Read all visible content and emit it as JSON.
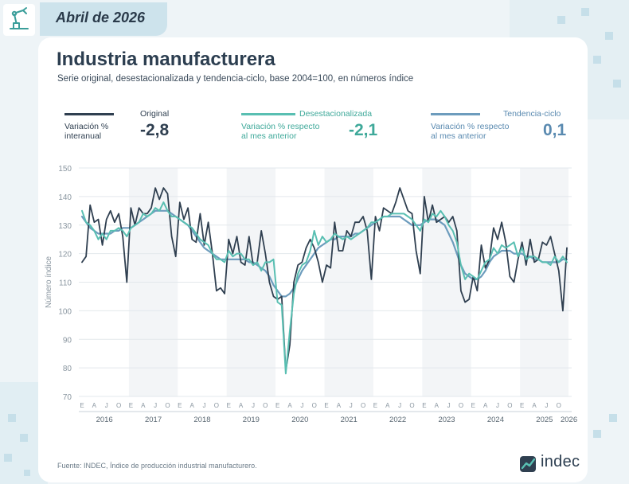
{
  "header": {
    "date_label": "Abril de 2026"
  },
  "page": {
    "title": "Industria manufacturera",
    "subtitle": "Serie original, desestacionalizada y tendencia-ciclo, base 2004=100, en números índice"
  },
  "colors": {
    "original": "#2f3f50",
    "desestacionalizada": "#59bfb2",
    "tendencia": "#6d9cbd",
    "grid": "#e3e8ec",
    "band": "#f3f5f7"
  },
  "legend": {
    "original": {
      "name": "Original",
      "desc": "Variación %\ninteranual",
      "value": "-2,8"
    },
    "desestacionalizada": {
      "name": "Desestacionalizada",
      "desc": "Variación % respecto\nal mes anterior",
      "value": "-2,1"
    },
    "tendencia": {
      "name": "Tendencia-ciclo",
      "desc": "Variación % respecto\nal mes anterior",
      "value": "0,1"
    }
  },
  "footer": {
    "source": "Fuente: INDEC, Índice de producción industrial manufacturero."
  },
  "brand": {
    "name": "indec"
  },
  "chart_data": {
    "type": "line",
    "ylabel": "Número índice",
    "ylim": [
      70,
      150
    ],
    "yticks": [
      70,
      80,
      90,
      100,
      110,
      120,
      130,
      140,
      150
    ],
    "grid": true,
    "start": "2016-01",
    "month_tick_labels": [
      "E",
      "A",
      "J",
      "O"
    ],
    "years": [
      "2016",
      "2017",
      "2018",
      "2019",
      "2020",
      "2021",
      "2022",
      "2023",
      "2024",
      "2025",
      "2026"
    ],
    "series": [
      {
        "name": "Original",
        "values": [
          117,
          119,
          137,
          131,
          132,
          123,
          132,
          135,
          131,
          134,
          126,
          110,
          136,
          130,
          136,
          134,
          134,
          136,
          143,
          139,
          143,
          141,
          126,
          119,
          138,
          132,
          136,
          125,
          124,
          134,
          123,
          131,
          120,
          107,
          108,
          106,
          125,
          120,
          126,
          117,
          116,
          126,
          116,
          117,
          128,
          120,
          110,
          105,
          104,
          105,
          79,
          88,
          110,
          116,
          117,
          122,
          125,
          122,
          117,
          110,
          116,
          115,
          131,
          121,
          121,
          128,
          126,
          131,
          131,
          133,
          128,
          111,
          133,
          128,
          136,
          135,
          134,
          138,
          143,
          139,
          135,
          134,
          121,
          113,
          140,
          131,
          137,
          131,
          132,
          133,
          131,
          133,
          128,
          107,
          103,
          104,
          112,
          107,
          123,
          115,
          118,
          129,
          125,
          131,
          124,
          112,
          110,
          118,
          124,
          116,
          125,
          117,
          118,
          124,
          123,
          126,
          120,
          114,
          100,
          122
        ],
        "unit": "índice"
      },
      {
        "name": "Desestacionalizada",
        "values": [
          135,
          131,
          130,
          128,
          125,
          127,
          125,
          128,
          128,
          129,
          128,
          126,
          129,
          130,
          131,
          134,
          133,
          134,
          136,
          135,
          138,
          135,
          133,
          133,
          132,
          131,
          130,
          129,
          127,
          125,
          124,
          123,
          120,
          118,
          118,
          117,
          121,
          119,
          120,
          120,
          118,
          118,
          116,
          117,
          114,
          117,
          117,
          118,
          103,
          102,
          78,
          93,
          106,
          113,
          116,
          117,
          121,
          128,
          123,
          126,
          124,
          125,
          127,
          126,
          125,
          126,
          125,
          126,
          127,
          128,
          129,
          131,
          131,
          132,
          133,
          133,
          134,
          134,
          134,
          134,
          133,
          132,
          130,
          128,
          132,
          131,
          134,
          133,
          135,
          133,
          130,
          128,
          124,
          116,
          111,
          113,
          112,
          111,
          114,
          117,
          118,
          122,
          120,
          123,
          122,
          123,
          124,
          119,
          122,
          118,
          119,
          119,
          118,
          117,
          117,
          116,
          119,
          117,
          119,
          117
        ],
        "unit": "índice"
      },
      {
        "name": "Tendencia-ciclo",
        "values": [
          133,
          131,
          129,
          128,
          127,
          127,
          127,
          127,
          128,
          128,
          129,
          129,
          129,
          130,
          131,
          132,
          133,
          134,
          135,
          135,
          135,
          135,
          134,
          133,
          132,
          131,
          130,
          128,
          126,
          124,
          122,
          121,
          120,
          119,
          118,
          118,
          118,
          118,
          118,
          118,
          118,
          117,
          117,
          116,
          115,
          114,
          112,
          109,
          107,
          105,
          105,
          106,
          108,
          111,
          114,
          116,
          118,
          120,
          122,
          123,
          124,
          125,
          125,
          126,
          126,
          126,
          126,
          127,
          127,
          128,
          129,
          130,
          131,
          132,
          133,
          133,
          133,
          133,
          133,
          132,
          131,
          130,
          130,
          130,
          131,
          132,
          132,
          132,
          131,
          130,
          127,
          124,
          120,
          116,
          113,
          112,
          111,
          111,
          112,
          114,
          117,
          119,
          120,
          121,
          121,
          121,
          120,
          120,
          120,
          119,
          119,
          118,
          118,
          117,
          117,
          117,
          117,
          117,
          118,
          118
        ],
        "unit": "índice"
      }
    ]
  }
}
